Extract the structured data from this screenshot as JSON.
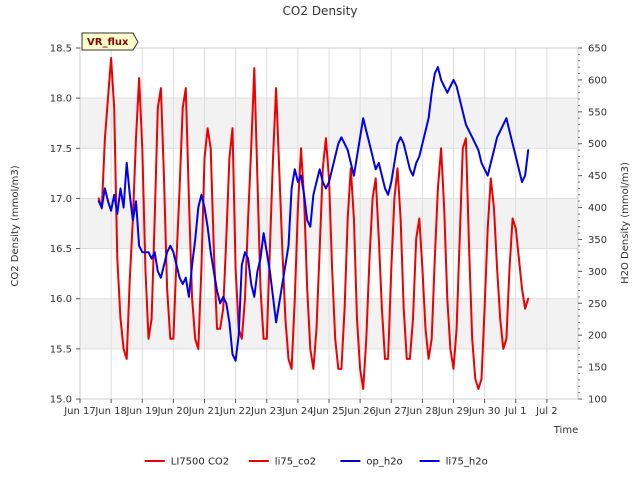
{
  "chart_data": {
    "type": "line",
    "title": "CO2 Density",
    "xlabel": "Time",
    "ylabel": "CO2 Density (mmol/m3)",
    "y2label": "H2O Density (mmol/m3)",
    "badge": "VR_flux",
    "xlim": [
      0,
      16
    ],
    "ylim": [
      15.0,
      18.5
    ],
    "y2lim": [
      100,
      650
    ],
    "x_ticks": [
      {
        "x": 0,
        "label": "Jun 17"
      },
      {
        "x": 1,
        "label": "Jun 18"
      },
      {
        "x": 2,
        "label": "Jun 19"
      },
      {
        "x": 3,
        "label": "Jun 20"
      },
      {
        "x": 4,
        "label": "Jun 21"
      },
      {
        "x": 5,
        "label": "Jun 22"
      },
      {
        "x": 6,
        "label": "Jun 23"
      },
      {
        "x": 7,
        "label": "Jun 24"
      },
      {
        "x": 8,
        "label": "Jun 25"
      },
      {
        "x": 9,
        "label": "Jun 26"
      },
      {
        "x": 10,
        "label": "Jun 27"
      },
      {
        "x": 11,
        "label": "Jun 28"
      },
      {
        "x": 12,
        "label": "Jun 29"
      },
      {
        "x": 13,
        "label": "Jun 30"
      },
      {
        "x": 14,
        "label": "Jul 1"
      },
      {
        "x": 15,
        "label": "Jul 2"
      }
    ],
    "y_ticks": [
      "15.0",
      "15.5",
      "16.0",
      "16.5",
      "17.0",
      "17.5",
      "18.0",
      "18.5"
    ],
    "y2_ticks": [
      "100",
      "150",
      "200",
      "250",
      "300",
      "350",
      "400",
      "450",
      "500",
      "550",
      "600",
      "650"
    ],
    "grid": true,
    "legend_position": "bottom",
    "series": [
      {
        "name": "LI7500 CO2",
        "axis": "left",
        "color": "#ee0000",
        "x": [],
        "y": []
      },
      {
        "name": "li75_co2",
        "axis": "left",
        "color": "#ee0000",
        "x": [
          0.6,
          0.7,
          0.8,
          0.9,
          1.0,
          1.1,
          1.2,
          1.3,
          1.4,
          1.5,
          1.6,
          1.7,
          1.8,
          1.9,
          2.0,
          2.1,
          2.2,
          2.3,
          2.4,
          2.5,
          2.6,
          2.7,
          2.8,
          2.9,
          3.0,
          3.1,
          3.2,
          3.3,
          3.4,
          3.5,
          3.6,
          3.7,
          3.8,
          3.9,
          4.0,
          4.1,
          4.2,
          4.3,
          4.4,
          4.5,
          4.6,
          4.7,
          4.8,
          4.9,
          5.0,
          5.1,
          5.2,
          5.3,
          5.4,
          5.5,
          5.6,
          5.7,
          5.8,
          5.9,
          6.0,
          6.1,
          6.2,
          6.3,
          6.4,
          6.5,
          6.6,
          6.7,
          6.8,
          6.9,
          7.0,
          7.1,
          7.2,
          7.3,
          7.4,
          7.5,
          7.6,
          7.7,
          7.8,
          7.9,
          8.0,
          8.1,
          8.2,
          8.3,
          8.4,
          8.5,
          8.6,
          8.7,
          8.8,
          8.9,
          9.0,
          9.1,
          9.2,
          9.3,
          9.4,
          9.5,
          9.6,
          9.7,
          9.8,
          9.9,
          10.0,
          10.1,
          10.2,
          10.3,
          10.4,
          10.5,
          10.6,
          10.7,
          10.8,
          10.9,
          11.0,
          11.1,
          11.2,
          11.3,
          11.4,
          11.5,
          11.6,
          11.7,
          11.8,
          11.9,
          12.0,
          12.1,
          12.2,
          12.3,
          12.4,
          12.5,
          12.6,
          12.7,
          12.8,
          12.9,
          13.0,
          13.1,
          13.2,
          13.3,
          13.4,
          13.5,
          13.6,
          13.7,
          13.8,
          13.9,
          14.0,
          14.1,
          14.2,
          14.3,
          14.4
        ],
        "y": [
          17.0,
          16.9,
          17.6,
          18.0,
          18.4,
          17.9,
          16.4,
          15.8,
          15.5,
          15.4,
          16.2,
          16.8,
          17.6,
          18.2,
          17.5,
          16.3,
          15.6,
          15.8,
          16.8,
          17.9,
          18.1,
          17.2,
          16.1,
          15.6,
          15.6,
          16.4,
          17.1,
          17.9,
          18.1,
          17.0,
          16.0,
          15.6,
          15.5,
          16.3,
          17.4,
          17.7,
          17.5,
          16.5,
          15.7,
          15.7,
          15.9,
          16.6,
          17.4,
          17.7,
          16.3,
          15.7,
          15.6,
          16.0,
          16.8,
          17.5,
          18.3,
          17.2,
          16.1,
          15.6,
          15.6,
          16.5,
          17.4,
          18.1,
          17.3,
          16.5,
          15.8,
          15.4,
          15.3,
          16.0,
          16.9,
          17.5,
          17.0,
          16.1,
          15.5,
          15.3,
          15.7,
          16.5,
          17.3,
          17.6,
          17.2,
          16.3,
          15.6,
          15.3,
          15.3,
          15.9,
          16.8,
          17.3,
          16.8,
          15.8,
          15.3,
          15.1,
          15.6,
          16.4,
          17.0,
          17.2,
          16.6,
          15.9,
          15.4,
          15.4,
          16.3,
          17.0,
          17.3,
          16.8,
          15.9,
          15.4,
          15.4,
          15.8,
          16.6,
          16.8,
          16.3,
          15.7,
          15.4,
          15.6,
          16.4,
          17.1,
          17.5,
          16.9,
          16.0,
          15.5,
          15.3,
          15.7,
          16.6,
          17.5,
          17.6,
          16.5,
          15.6,
          15.2,
          15.1,
          15.2,
          15.9,
          16.7,
          17.2,
          16.9,
          16.3,
          15.8,
          15.5,
          15.6,
          16.3,
          16.8,
          16.7,
          16.4,
          16.1,
          15.9,
          16.0
        ]
      },
      {
        "name": "op_h2o",
        "axis": "right",
        "color": "#0000cc",
        "x": [],
        "y": []
      },
      {
        "name": "li75_h2o",
        "axis": "right",
        "color": "#0000ee",
        "x": [
          0.6,
          0.7,
          0.8,
          0.9,
          1.0,
          1.1,
          1.2,
          1.3,
          1.4,
          1.5,
          1.6,
          1.7,
          1.8,
          1.9,
          2.0,
          2.1,
          2.2,
          2.3,
          2.4,
          2.5,
          2.6,
          2.7,
          2.8,
          2.9,
          3.0,
          3.1,
          3.2,
          3.3,
          3.4,
          3.5,
          3.6,
          3.7,
          3.8,
          3.9,
          4.0,
          4.1,
          4.2,
          4.3,
          4.4,
          4.5,
          4.6,
          4.7,
          4.8,
          4.9,
          5.0,
          5.1,
          5.2,
          5.3,
          5.4,
          5.5,
          5.6,
          5.7,
          5.8,
          5.9,
          6.0,
          6.1,
          6.2,
          6.3,
          6.4,
          6.5,
          6.6,
          6.7,
          6.8,
          6.9,
          7.0,
          7.1,
          7.2,
          7.3,
          7.4,
          7.5,
          7.6,
          7.7,
          7.8,
          7.9,
          8.0,
          8.1,
          8.2,
          8.3,
          8.4,
          8.5,
          8.6,
          8.7,
          8.8,
          8.9,
          9.0,
          9.1,
          9.2,
          9.3,
          9.4,
          9.5,
          9.6,
          9.7,
          9.8,
          9.9,
          10.0,
          10.1,
          10.2,
          10.3,
          10.4,
          10.5,
          10.6,
          10.7,
          10.8,
          10.9,
          11.0,
          11.1,
          11.2,
          11.3,
          11.4,
          11.5,
          11.6,
          11.7,
          11.8,
          11.9,
          12.0,
          12.1,
          12.2,
          12.3,
          12.4,
          12.5,
          12.6,
          12.7,
          12.8,
          12.9,
          13.0,
          13.1,
          13.2,
          13.3,
          13.4,
          13.5,
          13.6,
          13.7,
          13.8,
          13.9,
          14.0,
          14.1,
          14.2,
          14.3,
          14.4
        ],
        "y": [
          410,
          400,
          430,
          410,
          395,
          420,
          390,
          430,
          400,
          470,
          420,
          380,
          410,
          340,
          330,
          330,
          330,
          320,
          330,
          300,
          290,
          310,
          330,
          340,
          330,
          310,
          290,
          280,
          290,
          260,
          310,
          350,
          400,
          420,
          400,
          370,
          330,
          300,
          270,
          250,
          260,
          250,
          220,
          170,
          160,
          200,
          310,
          330,
          320,
          280,
          260,
          300,
          320,
          360,
          330,
          300,
          260,
          220,
          250,
          280,
          310,
          340,
          430,
          460,
          440,
          450,
          420,
          380,
          370,
          420,
          440,
          460,
          440,
          430,
          440,
          460,
          480,
          500,
          510,
          500,
          490,
          470,
          450,
          480,
          510,
          540,
          520,
          500,
          480,
          460,
          470,
          450,
          430,
          420,
          440,
          470,
          500,
          510,
          500,
          480,
          460,
          450,
          470,
          480,
          500,
          520,
          540,
          580,
          610,
          620,
          600,
          590,
          580,
          590,
          600,
          590,
          570,
          550,
          530,
          520,
          510,
          500,
          490,
          470,
          460,
          450,
          470,
          490,
          510,
          520,
          530,
          540,
          520,
          500,
          480,
          460,
          440,
          450,
          490
        ]
      }
    ]
  }
}
